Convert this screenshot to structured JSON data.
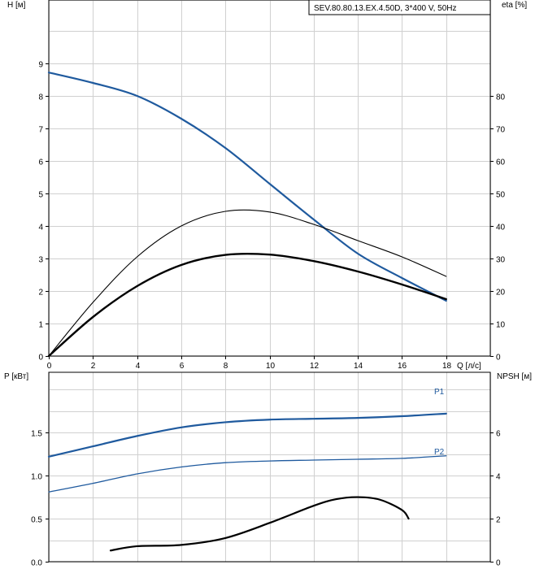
{
  "chart_data": [
    {
      "type": "line",
      "title": "SEV.80.80.13.EX.4.50D, 3*400 V, 50Hz",
      "xlabel": "Q [л/с]",
      "ylabel_left": "H [м]",
      "ylabel_right": "eta [%]",
      "xlim": [
        0,
        20
      ],
      "ylim_left": [
        0,
        10
      ],
      "ylim_right": [
        0,
        100
      ],
      "x_ticks": [
        "0",
        "2",
        "4",
        "6",
        "8",
        "10",
        "12",
        "14",
        "16",
        "18"
      ],
      "y_ticks_left": [
        "0",
        "1",
        "2",
        "3",
        "4",
        "5",
        "6",
        "7",
        "8",
        "9"
      ],
      "y_ticks_right": [
        "0",
        "10",
        "20",
        "30",
        "40",
        "50",
        "60",
        "70",
        "80"
      ],
      "grid": true,
      "series": [
        {
          "axis": "left",
          "color": "#1f5a9e",
          "x": [
            0,
            2,
            4,
            6,
            8,
            10,
            12,
            14,
            16,
            18
          ],
          "values": [
            8.72,
            8.4,
            8.0,
            7.3,
            6.4,
            5.3,
            4.2,
            3.15,
            2.4,
            1.7
          ]
        },
        {
          "axis": "right",
          "color": "#000000",
          "x": [
            0,
            2,
            4,
            6,
            8,
            10,
            12,
            14,
            16,
            18
          ],
          "values": [
            0,
            16.5,
            30.5,
            40,
            44.5,
            44.3,
            40.5,
            35.5,
            30.5,
            24.5
          ]
        },
        {
          "axis": "right",
          "color": "#000000",
          "x": [
            0,
            2,
            4,
            6,
            8,
            10,
            12,
            14,
            16,
            18
          ],
          "values": [
            0,
            12,
            21.5,
            28,
            31.1,
            31.2,
            29.2,
            26,
            22,
            17.5
          ]
        }
      ]
    },
    {
      "type": "line",
      "xlim": [
        0,
        20
      ],
      "ylabel_left": "P [кВт]",
      "ylabel_right": "NPSH [м]",
      "ylim_left": [
        0,
        2.2
      ],
      "ylim_right": [
        0,
        8.8
      ],
      "y_ticks_left": [
        "0.0",
        "0.5",
        "1.0",
        "1.5"
      ],
      "y_ticks_right": [
        "0",
        "2",
        "4",
        "6"
      ],
      "grid": true,
      "series": [
        {
          "name": "P1",
          "axis": "left",
          "color": "#1f5a9e",
          "x": [
            0,
            2,
            4,
            6,
            8,
            10,
            12,
            14,
            16,
            18
          ],
          "values": [
            1.22,
            1.34,
            1.46,
            1.56,
            1.62,
            1.65,
            1.66,
            1.67,
            1.69,
            1.72
          ]
        },
        {
          "name": "P2",
          "axis": "left",
          "color": "#1f5a9e",
          "x": [
            0,
            2,
            4,
            6,
            8,
            10,
            12,
            14,
            16,
            18
          ],
          "values": [
            0.81,
            0.91,
            1.02,
            1.1,
            1.15,
            1.17,
            1.18,
            1.19,
            1.2,
            1.23
          ]
        },
        {
          "axis": "right",
          "color": "#000000",
          "x": [
            2.8,
            4,
            6,
            8,
            10,
            12,
            13,
            14,
            15,
            16,
            16.3
          ],
          "values": [
            0.52,
            0.72,
            0.78,
            1.1,
            1.8,
            2.6,
            2.9,
            3.0,
            2.88,
            2.4,
            2.0
          ]
        }
      ]
    }
  ]
}
